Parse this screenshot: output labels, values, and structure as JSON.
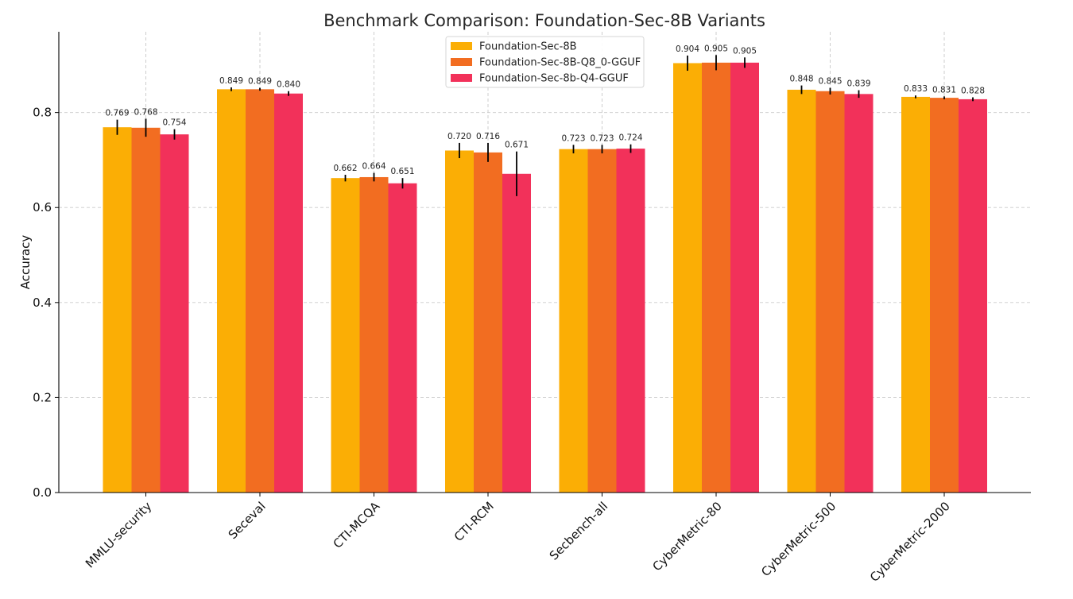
{
  "chart_data": {
    "type": "bar",
    "title": "Benchmark Comparison: Foundation-Sec-8B Variants",
    "xlabel": "",
    "ylabel": "Accuracy",
    "ylim": [
      0,
      0.97
    ],
    "yticks": [
      "0.0",
      "0.2",
      "0.4",
      "0.6",
      "0.8"
    ],
    "ytick_values": [
      0,
      0.2,
      0.4,
      0.6,
      0.8
    ],
    "grid": true,
    "legend_position": "top-center",
    "categories": [
      "MMLU-security",
      "Seceval",
      "CTI-MCQA",
      "CTI-RCM",
      "Secbench-all",
      "CyberMetric-80",
      "CyberMetric-500",
      "CyberMetric-2000"
    ],
    "series": [
      {
        "name": "Foundation-Sec-8B",
        "color": "#FBAE05",
        "values": [
          0.769,
          0.849,
          0.662,
          0.72,
          0.723,
          0.904,
          0.848,
          0.833
        ],
        "labels": [
          "0.769",
          "0.849",
          "0.662",
          "0.720",
          "0.723",
          "0.904",
          "0.848",
          "0.833"
        ],
        "errors": [
          0.016,
          0.004,
          0.007,
          0.016,
          0.009,
          0.016,
          0.009,
          0.003
        ]
      },
      {
        "name": "Foundation-Sec-8B-Q8_0-GGUF",
        "color": "#F26D21",
        "values": [
          0.768,
          0.849,
          0.664,
          0.716,
          0.723,
          0.905,
          0.845,
          0.831
        ],
        "labels": [
          "0.768",
          "0.849",
          "0.664",
          "0.716",
          "0.723",
          "0.905",
          "0.845",
          "0.831"
        ],
        "errors": [
          0.019,
          0.003,
          0.009,
          0.02,
          0.009,
          0.016,
          0.007,
          0.003
        ]
      },
      {
        "name": "Foundation-Sec-8b-Q4-GGUF",
        "color": "#F2315A",
        "values": [
          0.754,
          0.84,
          0.651,
          0.671,
          0.724,
          0.905,
          0.839,
          0.828
        ],
        "labels": [
          "0.754",
          "0.840",
          "0.651",
          "0.671",
          "0.724",
          "0.905",
          "0.839",
          "0.828"
        ],
        "errors": [
          0.011,
          0.005,
          0.011,
          0.047,
          0.009,
          0.011,
          0.008,
          0.004
        ]
      }
    ]
  }
}
